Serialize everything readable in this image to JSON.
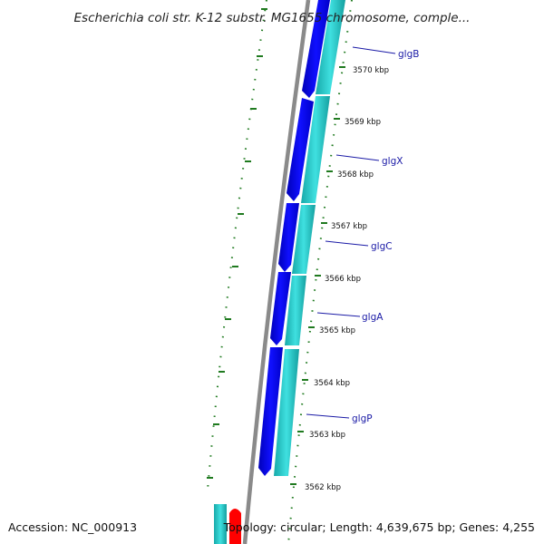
{
  "title": "Escherichia coli str. K-12 substr. MG1655 chromosome, comple...",
  "accession": "Accession: NC_000913",
  "topology": "Topology: circular; Length: 4,639,675 bp; Genes: 4,255",
  "scale_labels": [
    "3570 kbp",
    "3569 kbp",
    "3568 kbp",
    "3567 kbp",
    "3566 kbp",
    "3565 kbp",
    "3564 kbp",
    "3563 kbp",
    "3562 kbp"
  ],
  "genes": [
    {
      "name": "glgB"
    },
    {
      "name": "glgX"
    },
    {
      "name": "glgC"
    },
    {
      "name": "glgA"
    },
    {
      "name": "glgP"
    }
  ],
  "colors": {
    "forward_strand": "#0000ee",
    "reverse_strand": "#22c8c8",
    "backbone": "#8a8a8a",
    "gc_skew": "#1f7a1f",
    "label_line": "#1a1aa6",
    "rna": "#ff0000"
  }
}
